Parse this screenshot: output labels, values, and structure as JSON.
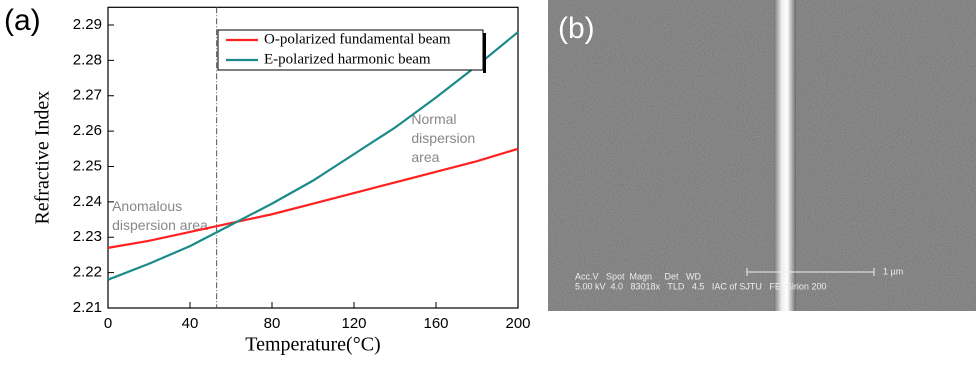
{
  "chart_data": {
    "type": "line",
    "panel_label": "(a)",
    "x_label": "Temperature(°C)",
    "y_label": "Refractive Index",
    "x": [
      0,
      20,
      40,
      60,
      80,
      100,
      120,
      140,
      160,
      180,
      200
    ],
    "series": [
      {
        "name": "O-polarized fundamental beam",
        "color": "#ff2020",
        "values": [
          2.227,
          2.229,
          2.2315,
          2.234,
          2.2365,
          2.2395,
          2.2425,
          2.2455,
          2.2485,
          2.2515,
          2.255
        ]
      },
      {
        "name": "E-polarized harmonic beam",
        "color": "#1a8a8a",
        "values": [
          2.218,
          2.2225,
          2.2275,
          2.2335,
          2.2395,
          2.246,
          2.2535,
          2.261,
          2.2695,
          2.2785,
          2.288
        ]
      }
    ],
    "xlim": [
      0,
      200
    ],
    "xticks": [
      0,
      40,
      80,
      120,
      160,
      200
    ],
    "ylim": [
      2.21,
      2.295
    ],
    "yticks": [
      2.21,
      2.22,
      2.23,
      2.24,
      2.25,
      2.26,
      2.27,
      2.28,
      2.29
    ],
    "vline": 53,
    "annotations": [
      {
        "lines": [
          "Normal",
          "dispersion",
          "area"
        ],
        "x": 148,
        "y": 2.263
      },
      {
        "lines": [
          "Anomalous",
          "dispersion area"
        ],
        "x": 2,
        "y": 2.2385
      }
    ],
    "legend": "top-right"
  },
  "panel_b": {
    "panel_label": "(b)",
    "caption_lines": [
      "Acc.V   Spot  Magn     Det   WD",
      "5.00 kV  4.0   83018x   TLD   4.5   IAC of SJTU   FEI Sirion 200"
    ],
    "scale_label": "1 µm"
  }
}
